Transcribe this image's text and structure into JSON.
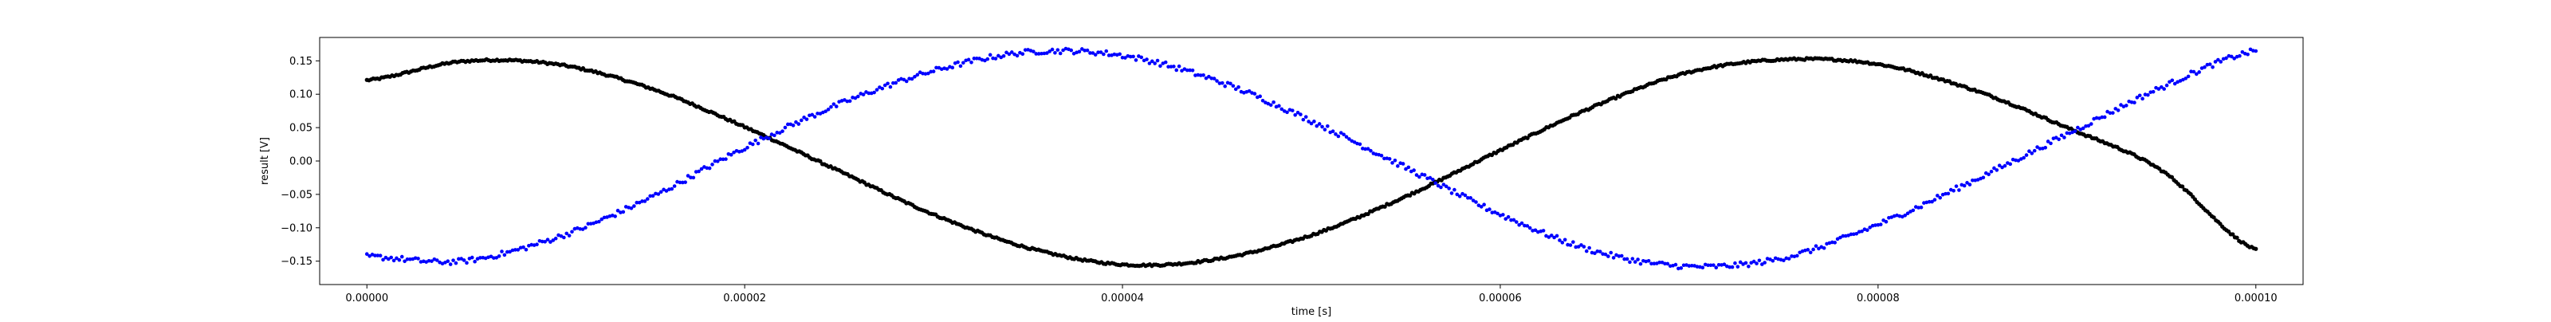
{
  "chart_data": {
    "type": "scatter",
    "title": "",
    "xlabel": "time [s]",
    "ylabel": "result [V]",
    "xlim": [
      -2.5e-06,
      0.0001025
    ],
    "ylim": [
      -0.185,
      0.185
    ],
    "x_ticks": [
      0.0,
      2e-05,
      4e-05,
      6e-05,
      8e-05,
      0.0001
    ],
    "x_tick_labels": [
      "0.00000",
      "0.00002",
      "0.00004",
      "0.00006",
      "0.00008",
      "0.00010"
    ],
    "y_ticks": [
      0.15,
      0.1,
      0.05,
      0.0,
      -0.05,
      -0.1,
      -0.15
    ],
    "y_tick_labels": [
      "0.15",
      "0.10",
      "0.05",
      "0.00",
      "−0.05",
      "−0.10",
      "−0.15"
    ],
    "grid": false,
    "legend": "none",
    "series": [
      {
        "color": "#000000",
        "marker": "dot",
        "x": [
          0.0,
          5e-06,
          1e-05,
          1.5e-05,
          2e-05,
          2.5e-05,
          3e-05,
          3.5e-05,
          4e-05,
          4.5e-05,
          5e-05,
          5.5e-05,
          6e-05,
          6.5e-05,
          7e-05,
          7.5e-05,
          8e-05,
          8.5e-05,
          9e-05,
          9.5e-05,
          0.0001
        ],
        "y": [
          0.121,
          0.149,
          0.145,
          0.109,
          0.051,
          -0.015,
          -0.08,
          -0.13,
          -0.155,
          -0.147,
          -0.111,
          -0.053,
          0.016,
          0.082,
          0.133,
          0.152,
          0.145,
          0.107,
          0.05,
          -0.014,
          -0.133
        ]
      },
      {
        "color": "#0000ff",
        "marker": "dot",
        "x": [
          0.0,
          5e-06,
          1e-05,
          1.5e-05,
          2e-05,
          2.5e-05,
          3e-05,
          3.5e-05,
          4e-05,
          4.5e-05,
          5e-05,
          5.5e-05,
          6e-05,
          6.5e-05,
          7e-05,
          7.5e-05,
          8e-05,
          8.5e-05,
          9e-05,
          9.5e-05,
          0.0001
        ],
        "y": [
          -0.143,
          -0.15,
          -0.115,
          -0.055,
          0.02,
          0.085,
          0.135,
          0.163,
          0.158,
          0.12,
          0.06,
          -0.01,
          -0.08,
          -0.135,
          -0.158,
          -0.145,
          -0.095,
          -0.03,
          0.04,
          0.11,
          0.165
        ]
      }
    ]
  }
}
